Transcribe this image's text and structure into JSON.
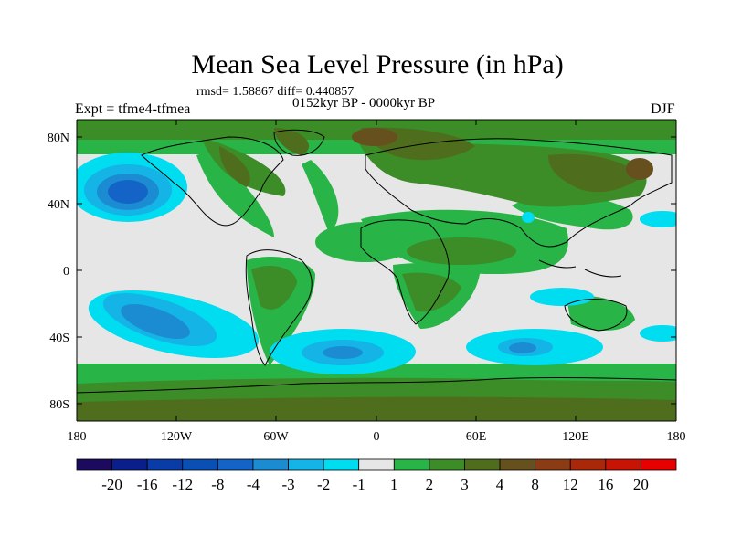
{
  "title": "Mean Sea Level Pressure (in hPa)",
  "stats": "rmsd= 1.58867  diff= 0.440857",
  "period": "0152kyr BP - 0000kyr BP",
  "experiment": "Expt = tfme4-tfmea",
  "season": "DJF",
  "axes": {
    "lon_labels": [
      "180",
      "120W",
      "60W",
      "0",
      "60E",
      "120E",
      "180"
    ],
    "lat_labels": [
      "80N",
      "40N",
      "0",
      "40S",
      "80S"
    ]
  },
  "colorbar": {
    "labels": [
      "-20",
      "-16",
      "-12",
      "-8",
      "-4",
      "-3",
      "-2",
      "-1",
      "1",
      "2",
      "3",
      "4",
      "8",
      "12",
      "16",
      "20"
    ],
    "colors": [
      "#1c0a5e",
      "#0a1e8c",
      "#0a3ca8",
      "#0a50b4",
      "#1464c8",
      "#1c8cd2",
      "#14b4e6",
      "#00dcf0",
      "#e6e6e6",
      "#28b446",
      "#3c8c28",
      "#4e6e1e",
      "#66501e",
      "#8c3c14",
      "#aa280a",
      "#c81405",
      "#e60000"
    ]
  }
}
